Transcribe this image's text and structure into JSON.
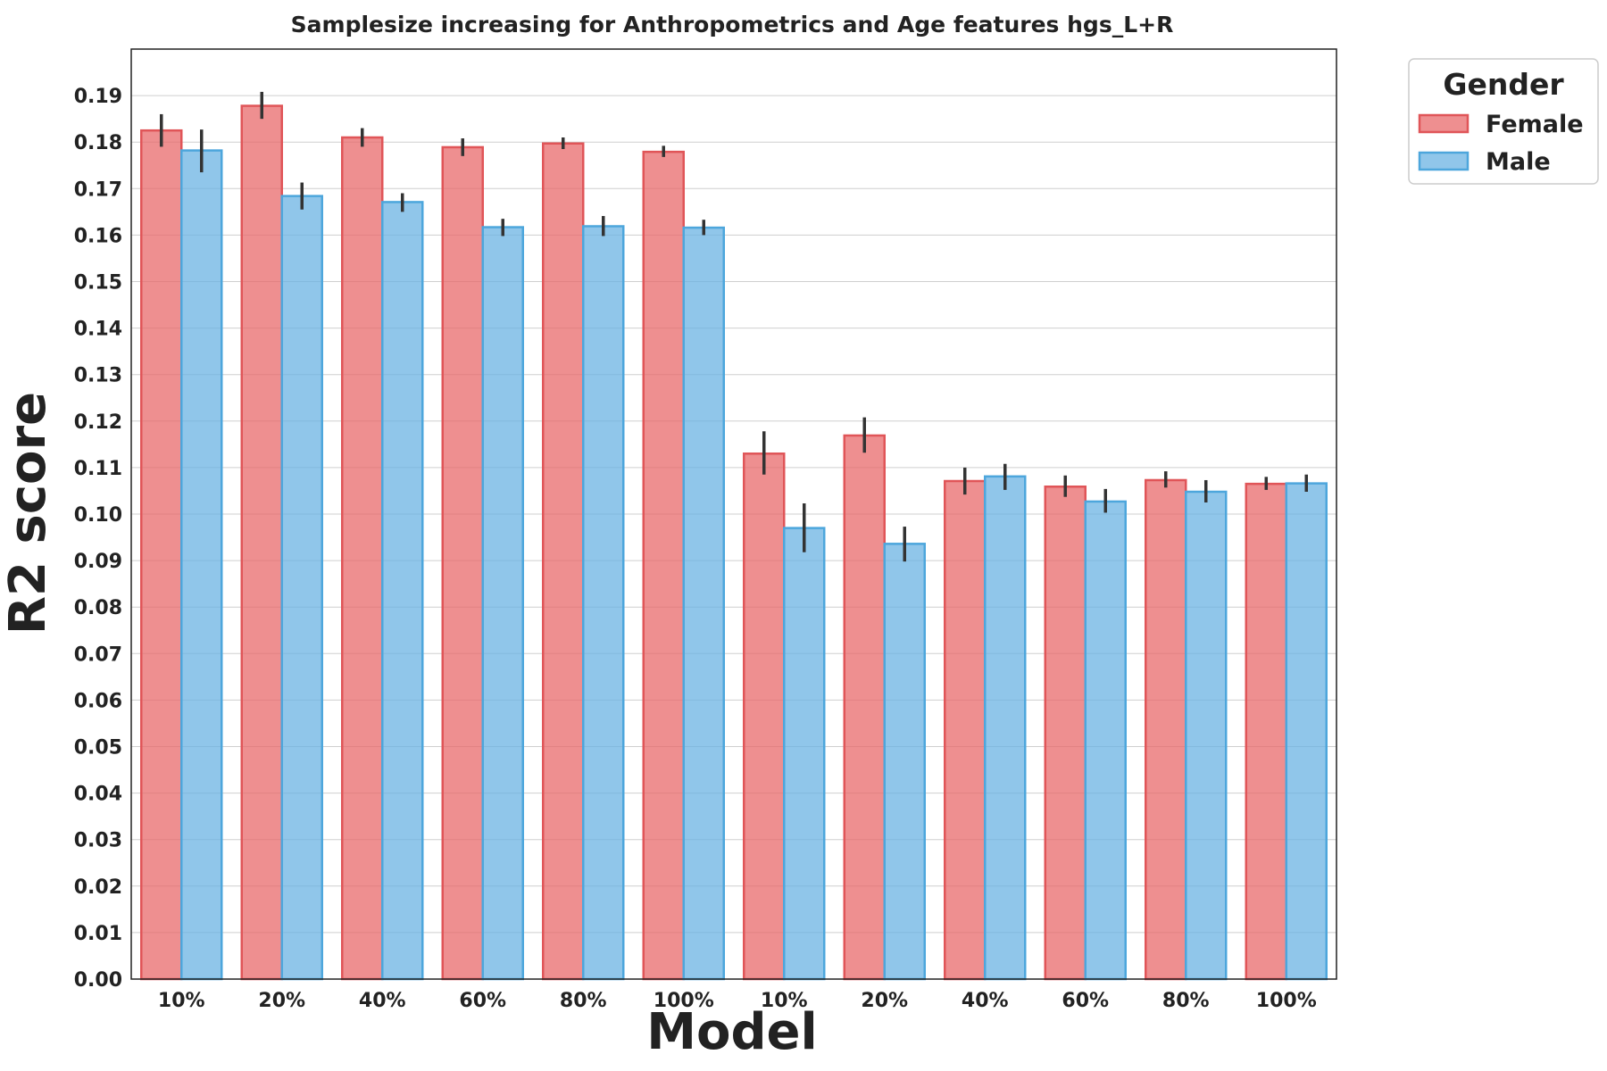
{
  "chart_data": {
    "type": "bar",
    "title": "Samplesize increasing for Anthropometrics and Age features hgs_L+R",
    "xlabel": "Model",
    "ylabel": "R2 score",
    "categories": [
      "10%",
      "20%",
      "40%",
      "60%",
      "80%",
      "100%",
      "10%",
      "20%",
      "40%",
      "60%",
      "80%",
      "100%"
    ],
    "series": [
      {
        "name": "Female",
        "color": "#e8696b",
        "edge_color": "#e05558",
        "values": [
          0.1825,
          0.1878,
          0.181,
          0.1789,
          0.1797,
          0.1779,
          0.113,
          0.1169,
          0.1071,
          0.1059,
          0.1073,
          0.1065
        ],
        "err_low": [
          0.179,
          0.185,
          0.179,
          0.177,
          0.1785,
          0.1768,
          0.1085,
          0.1132,
          0.1042,
          0.1037,
          0.1057,
          0.1052
        ],
        "err_high": [
          0.186,
          0.1908,
          0.183,
          0.1808,
          0.181,
          0.1792,
          0.1178,
          0.1208,
          0.11,
          0.1083,
          0.1092,
          0.108
        ]
      },
      {
        "name": "Male",
        "color": "#6bb3e3",
        "edge_color": "#4da6dc",
        "values": [
          0.1782,
          0.1684,
          0.1671,
          0.1617,
          0.1619,
          0.1616,
          0.097,
          0.0936,
          0.1081,
          0.1027,
          0.1048,
          0.1066
        ],
        "err_low": [
          0.1735,
          0.1655,
          0.165,
          0.1598,
          0.1598,
          0.16,
          0.0918,
          0.0898,
          0.1052,
          0.1003,
          0.1025,
          0.1048
        ],
        "err_high": [
          0.1827,
          0.1713,
          0.169,
          0.1635,
          0.1641,
          0.1633,
          0.1023,
          0.0973,
          0.1108,
          0.1054,
          0.1073,
          0.1085
        ]
      }
    ],
    "ylim": [
      0,
      0.2
    ],
    "yticks": [
      "0.00",
      "0.01",
      "0.02",
      "0.03",
      "0.04",
      "0.05",
      "0.06",
      "0.07",
      "0.08",
      "0.09",
      "0.10",
      "0.11",
      "0.12",
      "0.13",
      "0.14",
      "0.15",
      "0.16",
      "0.17",
      "0.18",
      "0.19"
    ],
    "grid": "horizontal",
    "legend": {
      "title": "Gender",
      "placement": "outside-top-right"
    }
  }
}
